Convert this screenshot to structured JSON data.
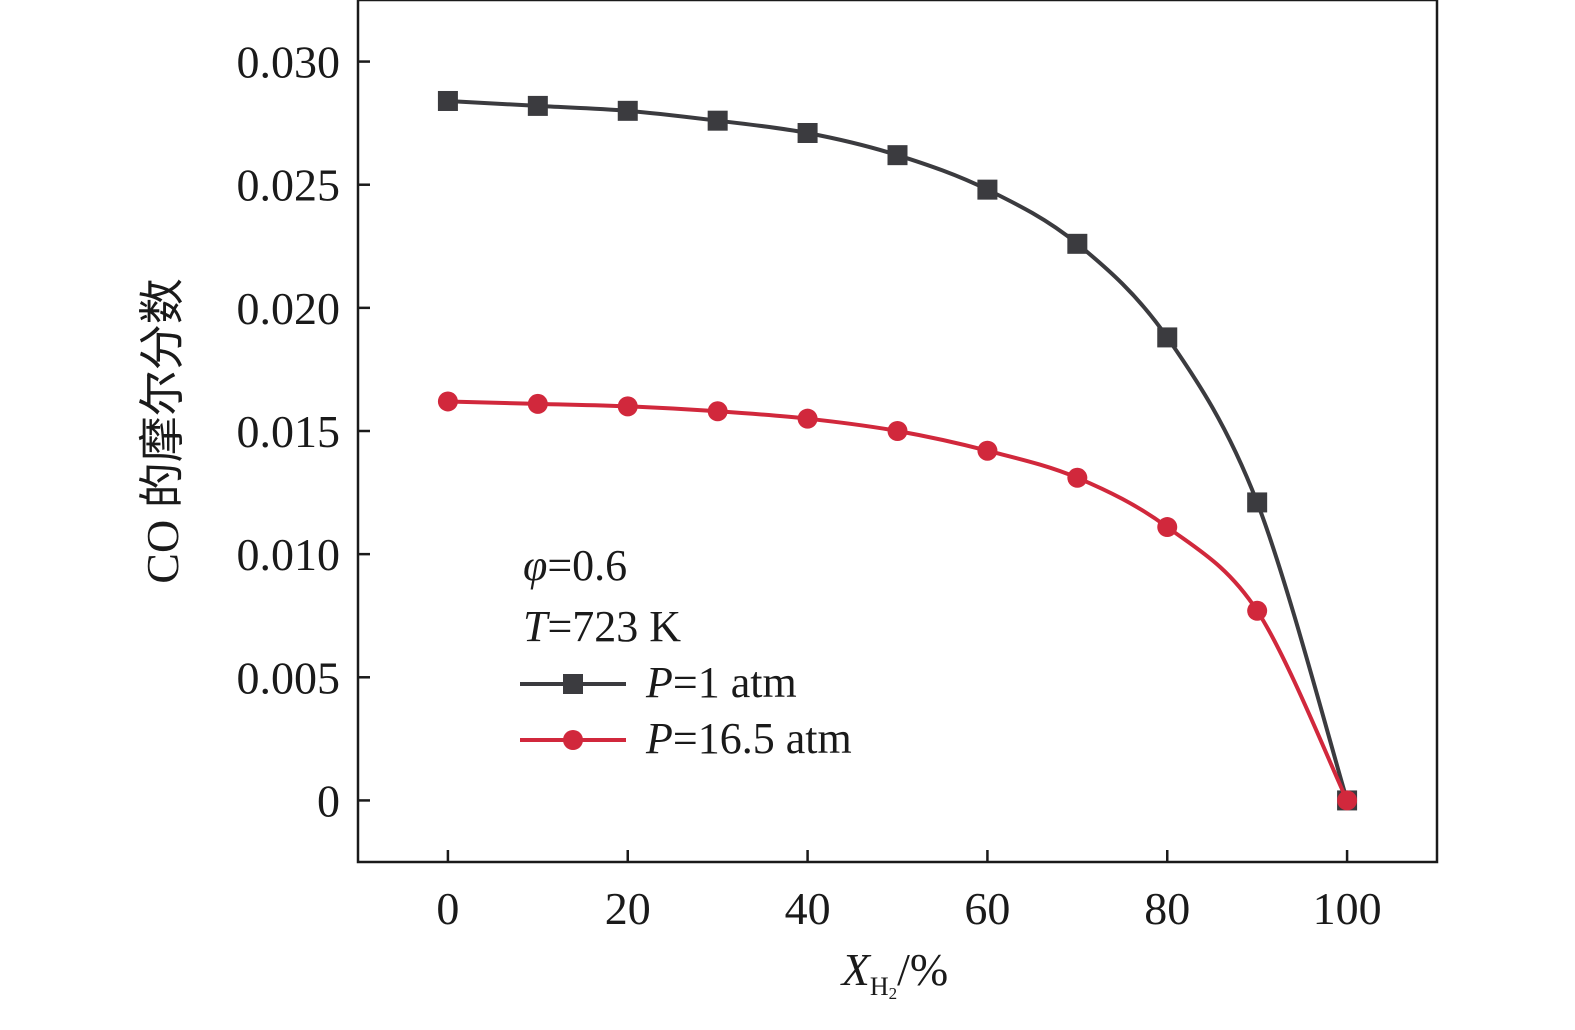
{
  "chart_data": {
    "type": "line",
    "xlabel": "X",
    "xlabel_sub": "H",
    "xlabel_subsub": "2",
    "xlabel_unit": "/%",
    "ylabel": "CO 的摩尔分数",
    "xlim": [
      -10,
      110
    ],
    "ylim": [
      -0.0025,
      0.0325
    ],
    "x_ticks": [
      0,
      20,
      40,
      60,
      80,
      100
    ],
    "y_ticks": [
      0,
      0.005,
      0.01,
      0.015,
      0.02,
      0.025,
      0.03
    ],
    "y_tick_labels": [
      "0",
      "0.005",
      "0.010",
      "0.015",
      "0.020",
      "0.025",
      "0.030"
    ],
    "x": [
      0,
      10,
      20,
      30,
      40,
      50,
      60,
      70,
      80,
      90,
      100
    ],
    "series": [
      {
        "name": "P=1 atm",
        "name_var": "P",
        "name_rest": "=1 atm",
        "color": "#3b3b3f",
        "marker": "square",
        "values": [
          0.0284,
          0.0282,
          0.028,
          0.0276,
          0.0271,
          0.0262,
          0.0248,
          0.0226,
          0.0188,
          0.0121,
          0.0
        ]
      },
      {
        "name": "P=16.5 atm",
        "name_var": "P",
        "name_rest": "=16.5 atm",
        "color": "#d1283c",
        "marker": "circle",
        "values": [
          0.0162,
          0.0161,
          0.016,
          0.0158,
          0.0155,
          0.015,
          0.0142,
          0.0131,
          0.0111,
          0.0077,
          0.0
        ]
      }
    ],
    "annotations": [
      {
        "var": "φ",
        "rest": "=0.6"
      },
      {
        "var": "T",
        "rest": "=723 K"
      }
    ],
    "legend_position": "lower-left",
    "grid": false
  }
}
